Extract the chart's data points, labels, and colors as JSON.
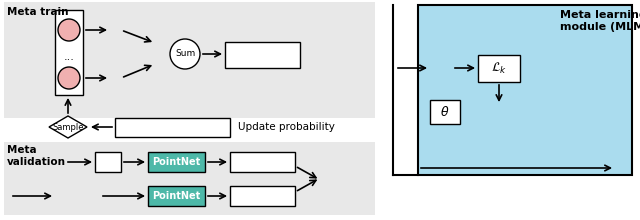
{
  "bg_color": "#e8e8e8",
  "bg_mlm_color": "#aadcee",
  "pink_color": "#f0b0b0",
  "teal_color": "#4db8a8",
  "white": "#ffffff",
  "black": "#000000",
  "meta_train_label": "Meta train",
  "meta_val_label": "Meta\nvalidation",
  "sum_label": "Sum",
  "sample_label": "Sample",
  "update_prob_label": "Update probability",
  "pointnet_label": "PointNet",
  "mlm_title": "Meta learning\nmodule (MLM)",
  "loss_label": "$\\mathcal{L}_k$",
  "theta_label": "$\\theta$"
}
